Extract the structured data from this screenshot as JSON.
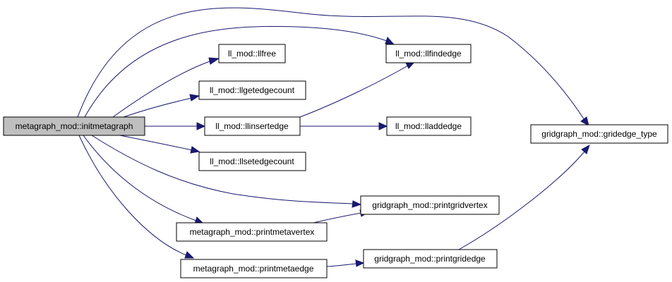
{
  "graph": {
    "nodes": {
      "initmetagraph": "metagraph_mod::initmetagraph",
      "llfree": "ll_mod::llfree",
      "llgetedgecount": "ll_mod::llgetedgecount",
      "llinsertedge": "ll_mod::llinsertedge",
      "llsetedgecount": "ll_mod::llsetedgecount",
      "llfindedge": "ll_mod::llfindedge",
      "lladdedge": "ll_mod::lladdedge",
      "gridedge_type": "gridgraph_mod::gridedge_type",
      "printgridvertex": "gridgraph_mod::printgridvertex",
      "printmetavertex": "metagraph_mod::printmetavertex",
      "printgridedge": "gridgraph_mod::printgridedge",
      "printmetaedge": "metagraph_mod::printmetaedge"
    },
    "edges": [
      {
        "from": "initmetagraph",
        "to": "llfree"
      },
      {
        "from": "initmetagraph",
        "to": "llgetedgecount"
      },
      {
        "from": "initmetagraph",
        "to": "llinsertedge"
      },
      {
        "from": "initmetagraph",
        "to": "llsetedgecount"
      },
      {
        "from": "initmetagraph",
        "to": "llfindedge"
      },
      {
        "from": "initmetagraph",
        "to": "gridedge_type"
      },
      {
        "from": "initmetagraph",
        "to": "printgridvertex"
      },
      {
        "from": "initmetagraph",
        "to": "printmetavertex"
      },
      {
        "from": "initmetagraph",
        "to": "printmetaedge"
      },
      {
        "from": "llinsertedge",
        "to": "llfindedge"
      },
      {
        "from": "llinsertedge",
        "to": "lladdedge"
      },
      {
        "from": "printmetavertex",
        "to": "printgridvertex"
      },
      {
        "from": "printmetaedge",
        "to": "printgridedge"
      },
      {
        "from": "printgridedge",
        "to": "gridedge_type"
      }
    ],
    "colors": {
      "edge": "#191970",
      "root_fill": "#bfbfbf",
      "node_fill": "#ffffff",
      "node_border": "#000000"
    }
  }
}
